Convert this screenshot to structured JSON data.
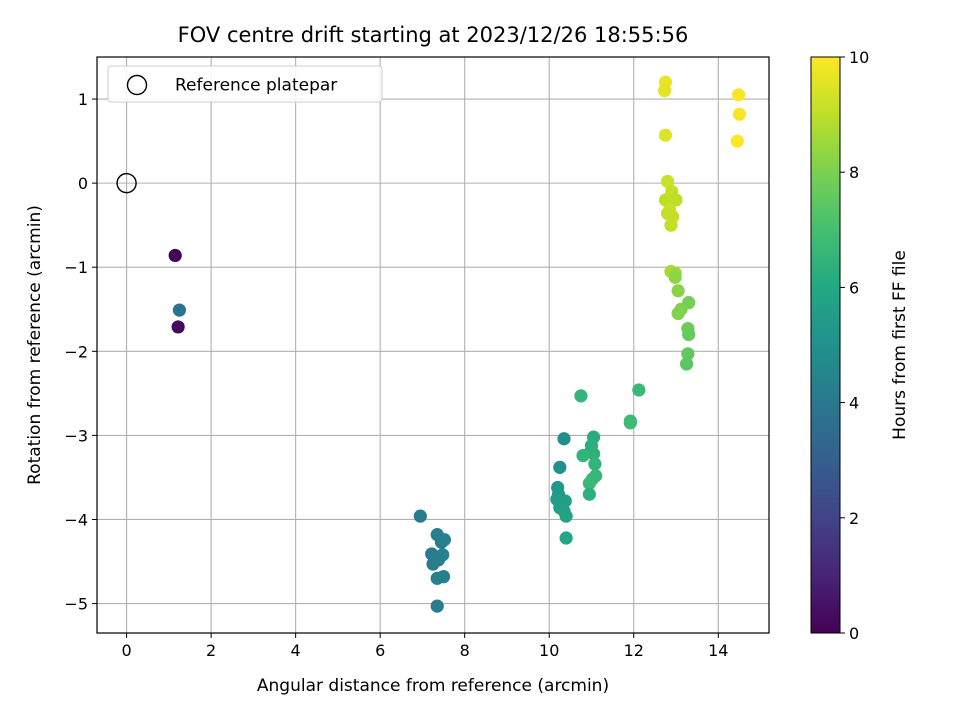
{
  "chart_data": {
    "type": "scatter",
    "title": "FOV centre drift starting at 2023/12/26 18:55:56",
    "xlabel": "Angular distance from reference (arcmin)",
    "ylabel": "Rotation from reference (arcmin)",
    "xlim": [
      -0.7,
      15.2
    ],
    "ylim": [
      -5.35,
      1.5
    ],
    "x_ticks": [
      0,
      2,
      4,
      6,
      8,
      10,
      12,
      14
    ],
    "y_ticks": [
      -5,
      -4,
      -3,
      -2,
      -1,
      0,
      1
    ],
    "grid": true,
    "legend": {
      "placement": "top-left",
      "entries": [
        "Reference platepar"
      ]
    },
    "reference_point": {
      "x": 0,
      "y": 0,
      "marker": "open-circle",
      "edge_color": "#000000"
    },
    "colorbar": {
      "label": "Hours from first FF file",
      "colormap": "viridis",
      "range": [
        0,
        10
      ],
      "ticks": [
        0,
        2,
        4,
        6,
        8,
        10
      ]
    },
    "points": [
      {
        "x": 1.15,
        "y": -0.86,
        "hours": 0.1
      },
      {
        "x": 1.22,
        "y": -1.71,
        "hours": 0.2
      },
      {
        "x": 1.25,
        "y": -1.51,
        "hours": 3.8
      },
      {
        "x": 6.95,
        "y": -3.96,
        "hours": 4.1
      },
      {
        "x": 7.35,
        "y": -4.18,
        "hours": 4.2
      },
      {
        "x": 7.45,
        "y": -4.27,
        "hours": 4.2
      },
      {
        "x": 7.52,
        "y": -4.24,
        "hours": 4.3
      },
      {
        "x": 7.22,
        "y": -4.41,
        "hours": 4.1
      },
      {
        "x": 7.3,
        "y": -4.45,
        "hours": 4.2
      },
      {
        "x": 7.48,
        "y": -4.42,
        "hours": 4.3
      },
      {
        "x": 7.38,
        "y": -4.48,
        "hours": 4.2
      },
      {
        "x": 7.25,
        "y": -4.53,
        "hours": 4.2
      },
      {
        "x": 7.35,
        "y": -4.7,
        "hours": 4.3
      },
      {
        "x": 7.5,
        "y": -4.68,
        "hours": 4.3
      },
      {
        "x": 7.35,
        "y": -5.03,
        "hours": 4.2
      },
      {
        "x": 10.35,
        "y": -3.04,
        "hours": 4.9
      },
      {
        "x": 10.25,
        "y": -3.38,
        "hours": 5.0
      },
      {
        "x": 10.2,
        "y": -3.62,
        "hours": 5.3
      },
      {
        "x": 10.22,
        "y": -3.7,
        "hours": 5.4
      },
      {
        "x": 10.18,
        "y": -3.76,
        "hours": 5.5
      },
      {
        "x": 10.38,
        "y": -3.78,
        "hours": 5.6
      },
      {
        "x": 10.25,
        "y": -3.86,
        "hours": 5.6
      },
      {
        "x": 10.35,
        "y": -3.9,
        "hours": 5.7
      },
      {
        "x": 10.4,
        "y": -3.96,
        "hours": 5.8
      },
      {
        "x": 10.4,
        "y": -4.22,
        "hours": 5.9
      },
      {
        "x": 10.75,
        "y": -2.53,
        "hours": 6.5
      },
      {
        "x": 11.05,
        "y": -3.02,
        "hours": 6.2
      },
      {
        "x": 11.0,
        "y": -3.12,
        "hours": 6.3
      },
      {
        "x": 10.98,
        "y": -3.2,
        "hours": 6.3
      },
      {
        "x": 11.05,
        "y": -3.22,
        "hours": 6.4
      },
      {
        "x": 10.8,
        "y": -3.24,
        "hours": 6.5
      },
      {
        "x": 11.08,
        "y": -3.34,
        "hours": 6.5
      },
      {
        "x": 11.1,
        "y": -3.48,
        "hours": 6.6
      },
      {
        "x": 11.02,
        "y": -3.52,
        "hours": 6.6
      },
      {
        "x": 10.95,
        "y": -3.57,
        "hours": 6.7
      },
      {
        "x": 10.95,
        "y": -3.7,
        "hours": 6.3
      },
      {
        "x": 11.92,
        "y": -2.83,
        "hours": 6.9
      },
      {
        "x": 11.92,
        "y": -2.85,
        "hours": 6.8
      },
      {
        "x": 12.12,
        "y": -2.46,
        "hours": 6.7
      },
      {
        "x": 12.75,
        "y": 1.2,
        "hours": 9.7
      },
      {
        "x": 12.73,
        "y": 1.1,
        "hours": 9.6
      },
      {
        "x": 12.75,
        "y": 0.57,
        "hours": 9.5
      },
      {
        "x": 14.48,
        "y": 1.05,
        "hours": 9.9
      },
      {
        "x": 14.5,
        "y": 0.82,
        "hours": 9.9
      },
      {
        "x": 14.45,
        "y": 0.5,
        "hours": 10.0
      },
      {
        "x": 12.8,
        "y": 0.02,
        "hours": 9.2
      },
      {
        "x": 12.9,
        "y": -0.1,
        "hours": 9.1
      },
      {
        "x": 12.75,
        "y": -0.2,
        "hours": 9.0
      },
      {
        "x": 13.0,
        "y": -0.2,
        "hours": 9.0
      },
      {
        "x": 12.85,
        "y": -0.32,
        "hours": 9.2
      },
      {
        "x": 12.8,
        "y": -0.36,
        "hours": 9.1
      },
      {
        "x": 12.92,
        "y": -0.4,
        "hours": 9.1
      },
      {
        "x": 12.88,
        "y": -0.5,
        "hours": 9.1
      },
      {
        "x": 12.88,
        "y": -1.05,
        "hours": 8.7
      },
      {
        "x": 12.98,
        "y": -1.07,
        "hours": 8.5
      },
      {
        "x": 12.98,
        "y": -1.12,
        "hours": 8.3
      },
      {
        "x": 13.05,
        "y": -1.28,
        "hours": 8.2
      },
      {
        "x": 13.3,
        "y": -1.42,
        "hours": 7.9
      },
      {
        "x": 13.12,
        "y": -1.5,
        "hours": 8.0
      },
      {
        "x": 13.05,
        "y": -1.55,
        "hours": 8.1
      },
      {
        "x": 13.28,
        "y": -1.73,
        "hours": 7.7
      },
      {
        "x": 13.3,
        "y": -1.8,
        "hours": 7.6
      },
      {
        "x": 13.28,
        "y": -2.03,
        "hours": 7.5
      },
      {
        "x": 13.25,
        "y": -2.15,
        "hours": 7.4
      }
    ]
  }
}
